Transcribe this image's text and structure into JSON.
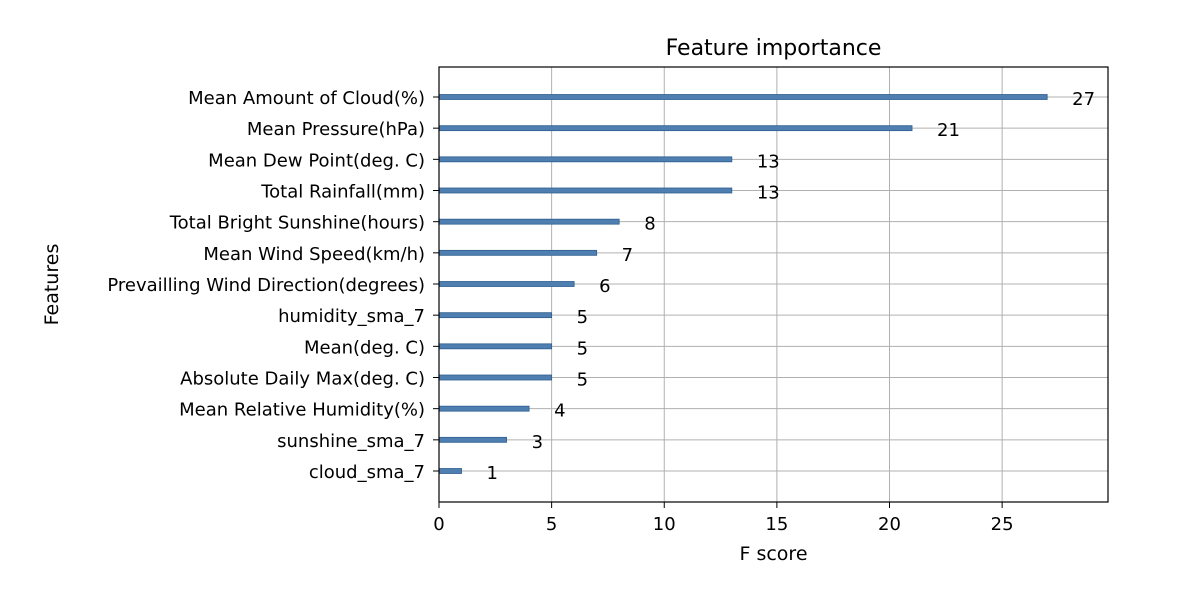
{
  "chart_data": {
    "type": "bar",
    "orientation": "horizontal",
    "title": "Feature importance",
    "xlabel": "F score",
    "ylabel": "Features",
    "xlim": [
      0,
      29.7
    ],
    "xticks": [
      0,
      5,
      10,
      15,
      20,
      25
    ],
    "grid": true,
    "categories": [
      "Mean Amount of Cloud(%)",
      "Mean Pressure(hPa)",
      "Mean Dew Point(deg. C)",
      "Total Rainfall(mm)",
      "Total Bright Sunshine(hours)",
      "Mean Wind Speed(km/h)",
      "Prevailling Wind Direction(degrees)",
      "humidity_sma_7",
      "Mean(deg. C)",
      "Absolute Daily Max(deg. C)",
      "Mean Relative Humidity(%)",
      "sunshine_sma_7",
      "cloud_sma_7"
    ],
    "values": [
      27,
      21,
      13,
      13,
      8,
      7,
      6,
      5,
      5,
      5,
      4,
      3,
      1
    ],
    "value_labels": [
      "27",
      "21",
      "13",
      "13",
      "8",
      "7",
      "6",
      "5",
      "5",
      "5",
      "4",
      "3",
      "1"
    ],
    "colors": {
      "bar": "#4e7fb0",
      "bar_edge": "#2f5f8f",
      "grid": "#b0b0b0",
      "axes": "#000000"
    }
  }
}
